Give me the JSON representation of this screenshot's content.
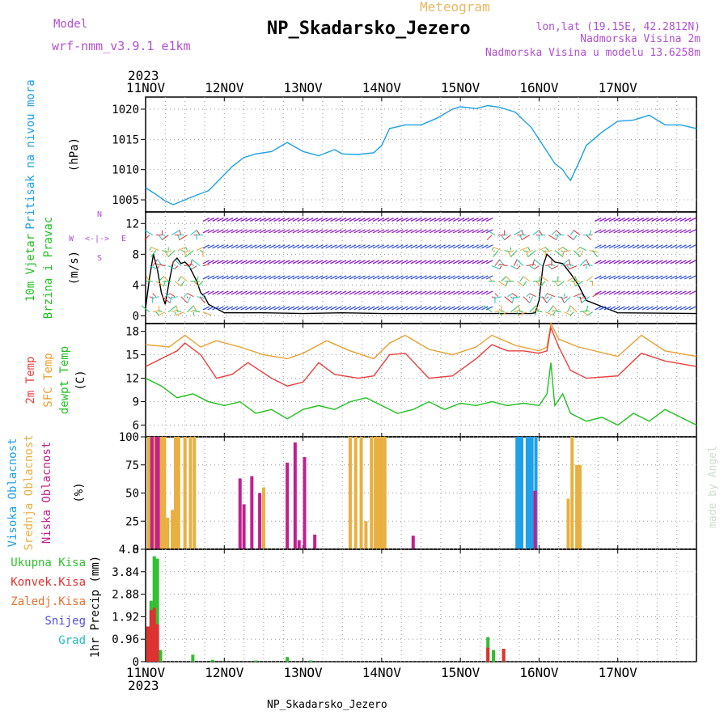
{
  "header": {
    "model_label": "Model",
    "model_name": "wrf-nmm_v3.9.1 e1km",
    "meteogram_label": "Meteogram",
    "station_title": "NP_Skadarsko_Jezero",
    "lonlat": "lon,lat (19.15E, 42.2812N)",
    "elevation": "Nadmorska Visina 2m",
    "model_elevation": "Nadmorska Visina u modelu 13.6258m",
    "year": "2023",
    "footer_station": "NP_Skadarsko_Jezero",
    "watermark": "made by Angel"
  },
  "colors": {
    "pressure": "#1ea0e6",
    "wind_speed": "#000000",
    "t2m": "#e84040",
    "sfc": "#e8a030",
    "dewpt": "#20c020",
    "high_cloud": "#20a0e8",
    "mid_cloud": "#e8b040",
    "low_cloud": "#c02090",
    "total_precip": "#30c030",
    "conv_precip": "#e03030",
    "frozen_precip": "#e87030",
    "snow": "#5050e0",
    "hail": "#20c0c0",
    "legend_purple": "#b050d0"
  },
  "chart_data": [
    {
      "type": "line",
      "panel": "pressure",
      "ylabel": [
        "Pritisak na nivou mora",
        "(hPa)"
      ],
      "x_ticks": [
        "11NOV",
        "12NOV",
        "13NOV",
        "14NOV",
        "15NOV",
        "16NOV",
        "17NOV"
      ],
      "ylim": [
        1003,
        1022
      ],
      "yticks": [
        1005,
        1010,
        1015,
        1020
      ],
      "grid": true,
      "series": [
        {
          "color_key": "pressure",
          "x": [
            0,
            0.12,
            0.25,
            0.35,
            0.5,
            0.65,
            0.8,
            0.95,
            1.1,
            1.25,
            1.4,
            1.6,
            1.8,
            2.0,
            2.2,
            2.4,
            2.5,
            2.7,
            2.9,
            3.0,
            3.1,
            3.3,
            3.5,
            3.7,
            3.9,
            4.0,
            4.2,
            4.35,
            4.5,
            4.7,
            4.8,
            4.9,
            5.0,
            5.1,
            5.2,
            5.3,
            5.35,
            5.4,
            5.5,
            5.6,
            5.8,
            6.0,
            6.2,
            6.4,
            6.6,
            6.8,
            7.0
          ],
          "values": [
            1007,
            1006,
            1004.8,
            1004.2,
            1005,
            1005.8,
            1006.5,
            1008.5,
            1010.5,
            1012,
            1012.6,
            1013,
            1014.5,
            1013,
            1012.3,
            1013.3,
            1012.6,
            1012.5,
            1012.8,
            1014,
            1016.8,
            1017.4,
            1017.4,
            1018.5,
            1020,
            1020.4,
            1020.1,
            1020.6,
            1020.3,
            1019.5,
            1018.2,
            1017,
            1015,
            1013,
            1011,
            1010,
            1009,
            1008.2,
            1011,
            1014,
            1016.2,
            1018,
            1018.2,
            1019,
            1017.4,
            1017.4,
            1016.8
          ]
        }
      ]
    },
    {
      "type": "line",
      "panel": "wind",
      "ylabel": [
        "10m Vjetar",
        "Brzina i Pravac",
        "(m/s)"
      ],
      "compass": [
        "N",
        "W",
        "<-|->",
        "E",
        "S"
      ],
      "ylim": [
        -1,
        13.5
      ],
      "yticks": [
        0,
        4,
        8,
        12
      ],
      "grid": true,
      "series": [
        {
          "color_key": "wind_speed",
          "x": [
            0,
            0.05,
            0.1,
            0.15,
            0.2,
            0.25,
            0.3,
            0.35,
            0.4,
            0.45,
            0.5,
            0.55,
            0.6,
            0.65,
            0.7,
            0.75,
            0.8,
            1.0,
            1.5,
            2.0,
            2.5,
            3.0,
            3.5,
            4.0,
            4.5,
            4.9,
            4.95,
            5.0,
            5.05,
            5.1,
            5.2,
            5.3,
            5.4,
            5.5,
            5.6,
            6.0,
            7.0
          ],
          "values": [
            1,
            5,
            8,
            6,
            3,
            1.5,
            4.5,
            7,
            7.5,
            6.8,
            7,
            6.5,
            5.5,
            4.5,
            3,
            2.5,
            1.5,
            0.4,
            0.4,
            0.3,
            0.4,
            0.3,
            0.3,
            0.3,
            0.3,
            0.3,
            0.4,
            2,
            6.5,
            8,
            7,
            6.8,
            5.5,
            4,
            2,
            0.4,
            0.3
          ]
        }
      ]
    },
    {
      "type": "line",
      "panel": "temperature",
      "ylabel": [
        "2m Temp",
        "SFC Temp",
        "dewpt Temp",
        "(C)"
      ],
      "ylim": [
        4.5,
        19
      ],
      "yticks": [
        6,
        9,
        12,
        15,
        18
      ],
      "grid": true,
      "series": [
        {
          "color_key": "sfc",
          "x": [
            0,
            0.3,
            0.5,
            0.7,
            0.9,
            1.2,
            1.5,
            1.8,
            2.0,
            2.3,
            2.6,
            2.9,
            3.1,
            3.3,
            3.6,
            3.9,
            4.2,
            4.4,
            4.7,
            5.0,
            5.1,
            5.15,
            5.25,
            5.5,
            6.0,
            6.3,
            6.6,
            7.0
          ],
          "values": [
            16.3,
            16,
            17.5,
            16,
            16.8,
            16,
            15,
            14.5,
            15.2,
            16.8,
            15.5,
            14.5,
            16.5,
            17.5,
            15.7,
            15,
            16,
            17.5,
            16.2,
            15.5,
            16,
            19,
            17,
            16,
            14.8,
            17.5,
            15.5,
            14.8
          ]
        },
        {
          "color_key": "t2m",
          "x": [
            0,
            0.2,
            0.4,
            0.5,
            0.7,
            0.9,
            1.1,
            1.3,
            1.6,
            1.8,
            2.0,
            2.2,
            2.4,
            2.7,
            2.9,
            3.1,
            3.3,
            3.6,
            3.9,
            4.2,
            4.4,
            4.6,
            4.8,
            5.0,
            5.1,
            5.15,
            5.25,
            5.4,
            5.6,
            6.0,
            6.3,
            6.6,
            7.0
          ],
          "values": [
            13.5,
            14.5,
            15.5,
            16.5,
            15,
            12,
            12.5,
            14,
            12,
            11,
            11.5,
            14,
            12.5,
            12,
            12.3,
            15,
            15.2,
            12,
            12.3,
            14.5,
            16.3,
            15.5,
            15.5,
            15.2,
            15.5,
            18.5,
            16,
            13,
            12,
            12.3,
            15.2,
            14.2,
            13.5
          ]
        },
        {
          "color_key": "dewpt",
          "x": [
            0,
            0.2,
            0.4,
            0.6,
            0.8,
            1.0,
            1.2,
            1.4,
            1.6,
            1.8,
            2.0,
            2.2,
            2.4,
            2.6,
            2.8,
            3.0,
            3.2,
            3.4,
            3.6,
            3.8,
            4.0,
            4.2,
            4.4,
            4.6,
            4.8,
            5.0,
            5.1,
            5.15,
            5.2,
            5.3,
            5.4,
            5.6,
            5.8,
            6.0,
            6.2,
            6.4,
            6.6,
            6.8,
            7.0
          ],
          "values": [
            12,
            11,
            9.5,
            10,
            9,
            8.5,
            9,
            7.5,
            8,
            6.8,
            8,
            8.5,
            8,
            9,
            9.5,
            8.5,
            7.5,
            8,
            9,
            8,
            8.8,
            8.5,
            9,
            8.5,
            8.8,
            8.5,
            10,
            14,
            8.5,
            10,
            7.5,
            6.5,
            7,
            6,
            7.5,
            6.5,
            8,
            7,
            6
          ]
        }
      ]
    },
    {
      "type": "bar",
      "panel": "cloud",
      "ylabel": [
        "Visoka Oblacnost",
        "Srednja Oblacnost",
        "Niska Oblacnost",
        "(%)"
      ],
      "ylim": [
        0,
        100
      ],
      "yticks": [
        0,
        25,
        50,
        75,
        100
      ],
      "grid": true,
      "series": [
        {
          "name": "Visoka Oblacnost",
          "color_key": "high_cloud",
          "x": [
            0.06,
            0.09,
            4.72,
            4.75,
            4.78,
            4.85,
            4.88,
            4.91,
            4.96
          ],
          "values": [
            100,
            100,
            100,
            100,
            100,
            100,
            100,
            100,
            100
          ]
        },
        {
          "name": "Srednja Oblacnost",
          "color_key": "mid_cloud",
          "x": [
            0.04,
            0.12,
            0.2,
            0.24,
            0.28,
            0.34,
            0.38,
            0.42,
            0.5,
            0.57,
            0.62,
            1.5,
            2.6,
            2.67,
            2.74,
            2.8,
            2.87,
            2.92,
            2.96,
            3.0,
            3.04,
            5.37,
            5.42,
            5.48,
            5.52
          ],
          "values": [
            100,
            100,
            100,
            100,
            28,
            35,
            100,
            100,
            100,
            100,
            100,
            55,
            100,
            100,
            100,
            25,
            100,
            100,
            100,
            100,
            100,
            45,
            100,
            75,
            75
          ]
        },
        {
          "name": "Niska Oblacnost",
          "color_key": "low_cloud",
          "x": [
            0.08,
            0.14,
            0.16,
            1.2,
            1.25,
            1.35,
            1.45,
            1.8,
            1.9,
            1.95,
            2.02,
            2.15,
            3.4,
            4.95
          ],
          "values": [
            100,
            100,
            100,
            63,
            40,
            65,
            50,
            77,
            95,
            8,
            82,
            13,
            12,
            52
          ]
        }
      ]
    },
    {
      "type": "bar",
      "panel": "precip",
      "ylabel": [
        "1hr Precip (mm)"
      ],
      "legend": [
        "Ukupna Kisa",
        "Konvek.Kisa",
        "Zaledj.Kisa",
        "Snijeg",
        "Grad"
      ],
      "ylim": [
        0,
        4.8
      ],
      "yticks": [
        0,
        0.96,
        1.92,
        2.88,
        3.84,
        4.8
      ],
      "x_ticks": [
        "11NOV",
        "12NOV",
        "13NOV",
        "14NOV",
        "15NOV",
        "16NOV",
        "17NOV"
      ],
      "grid": true,
      "series": [
        {
          "name": "Ukupna Kisa",
          "color_key": "total_precip",
          "x": [
            0.03,
            0.07,
            0.11,
            0.15,
            0.19,
            0.6,
            0.85,
            1.4,
            1.8,
            2.1,
            4.35,
            4.42,
            4.55
          ],
          "values": [
            1.5,
            2.6,
            4.5,
            4.4,
            0.5,
            0.3,
            0.08,
            0.05,
            0.2,
            0.05,
            1.05,
            0.5,
            0.55
          ]
        },
        {
          "name": "Konvek.Kisa",
          "color_key": "conv_precip",
          "x": [
            0.03,
            0.07,
            0.11,
            0.15,
            4.35,
            4.55
          ],
          "values": [
            1.5,
            2.2,
            2.3,
            1.6,
            0.6,
            0.55
          ]
        }
      ]
    }
  ]
}
